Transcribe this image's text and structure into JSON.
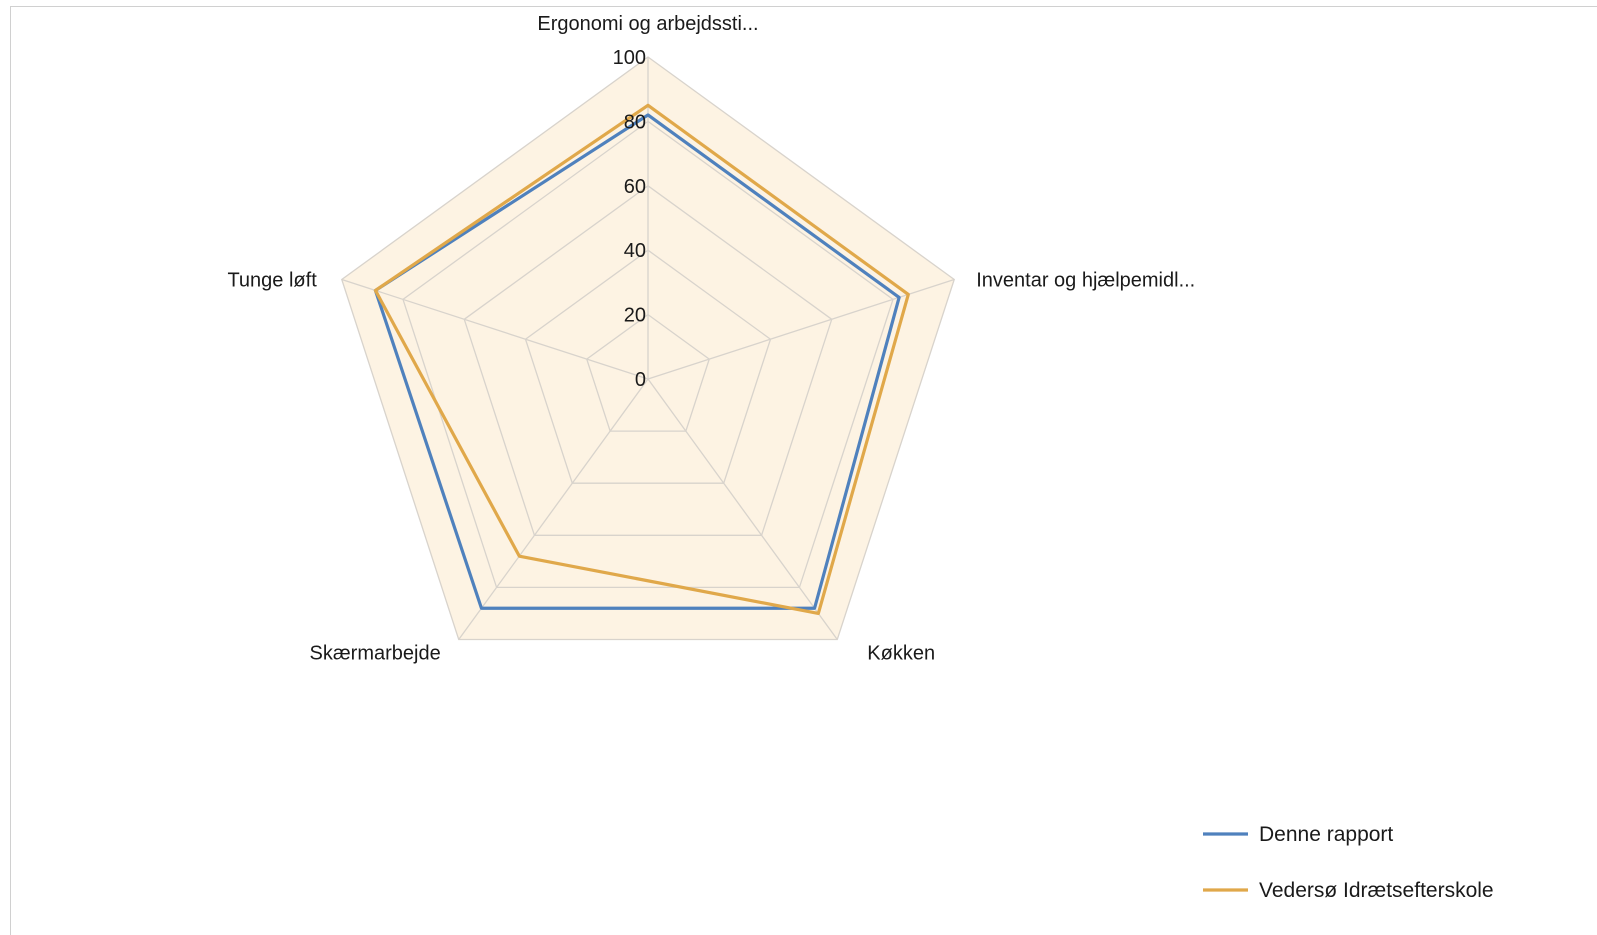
{
  "chart_data": {
    "type": "radar",
    "axes": [
      "Ergonomi og arbejdssti...",
      "Inventar og hjælpemidl...",
      "Køkken",
      "Skærmarbejde",
      "Tunge løft"
    ],
    "rlim": [
      0,
      100
    ],
    "ticks": [
      "0",
      "20",
      "40",
      "60",
      "80",
      "100"
    ],
    "tick_values": [
      0,
      20,
      40,
      60,
      80,
      100
    ],
    "grid": true,
    "plot_fill": "#fdf3e3",
    "grid_color": "#d8d3cc",
    "legend_position": "bottom-right",
    "series": [
      {
        "name": "Denne rapport",
        "color": "#4f81bd",
        "values": [
          82,
          82,
          88,
          88,
          89
        ]
      },
      {
        "name": "Vedersø Idrætsefterskole",
        "color": "#e0a84a",
        "values": [
          85,
          85,
          90,
          68,
          89
        ]
      }
    ]
  }
}
